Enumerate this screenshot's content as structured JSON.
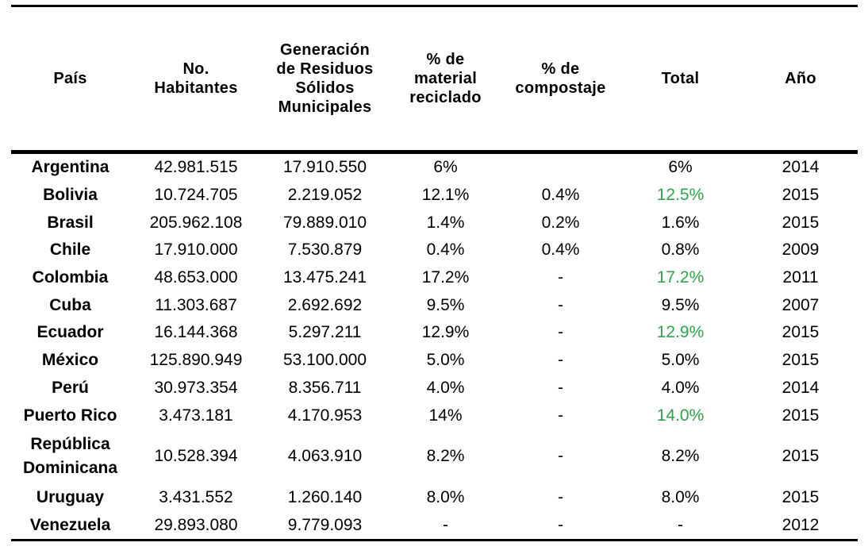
{
  "headers": {
    "pais": "País",
    "habitantes_l1": "No.",
    "habitantes_l2": "Habitantes",
    "generacion_l1": "Generación",
    "generacion_l2": "de Residuos",
    "generacion_l3": "Sólidos",
    "generacion_l4": "Municipales",
    "reciclado_l1": "% de",
    "reciclado_l2": "material",
    "reciclado_l3": "reciclado",
    "compostaje_l1": "% de",
    "compostaje_l2": "compostaje",
    "total": "Total",
    "anio": "Año"
  },
  "colors": {
    "highlight_total": "#2ea44f"
  },
  "rows": [
    {
      "pais": "Argentina",
      "habitantes": "42.981.515",
      "generacion": "17.910.550",
      "reciclado": "6%",
      "compostaje": "",
      "total": "6%",
      "anio": "2014",
      "highlight": false
    },
    {
      "pais": "Bolivia",
      "habitantes": "10.724.705",
      "generacion": "2.219.052",
      "reciclado": "12.1%",
      "compostaje": "0.4%",
      "total": "12.5%",
      "anio": "2015",
      "highlight": true
    },
    {
      "pais": "Brasil",
      "habitantes": "205.962.108",
      "generacion": "79.889.010",
      "reciclado": "1.4%",
      "compostaje": "0.2%",
      "total": "1.6%",
      "anio": "2015",
      "highlight": false
    },
    {
      "pais": "Chile",
      "habitantes": "17.910.000",
      "generacion": "7.530.879",
      "reciclado": "0.4%",
      "compostaje": "0.4%",
      "total": "0.8%",
      "anio": "2009",
      "highlight": false
    },
    {
      "pais": "Colombia",
      "habitantes": "48.653.000",
      "generacion": "13.475.241",
      "reciclado": "17.2%",
      "compostaje": "-",
      "total": "17.2%",
      "anio": "2011",
      "highlight": true
    },
    {
      "pais": "Cuba",
      "habitantes": "11.303.687",
      "generacion": "2.692.692",
      "reciclado": "9.5%",
      "compostaje": "-",
      "total": "9.5%",
      "anio": "2007",
      "highlight": false
    },
    {
      "pais": "Ecuador",
      "habitantes": "16.144.368",
      "generacion": "5.297.211",
      "reciclado": "12.9%",
      "compostaje": "-",
      "total": "12.9%",
      "anio": "2015",
      "highlight": true
    },
    {
      "pais": "México",
      "habitantes": "125.890.949",
      "generacion": "53.100.000",
      "reciclado": "5.0%",
      "compostaje": "-",
      "total": "5.0%",
      "anio": "2015",
      "highlight": false
    },
    {
      "pais": "Perú",
      "habitantes": "30.973.354",
      "generacion": "8.356.711",
      "reciclado": "4.0%",
      "compostaje": "-",
      "total": "4.0%",
      "anio": "2014",
      "highlight": false
    },
    {
      "pais": "Puerto Rico",
      "habitantes": "3.473.181",
      "generacion": "4.170.953",
      "reciclado": "14%",
      "compostaje": "-",
      "total": "14.0%",
      "anio": "2015",
      "highlight": true
    },
    {
      "pais": "República Dominicana",
      "habitantes": "10.528.394",
      "generacion": "4.063.910",
      "reciclado": "8.2%",
      "compostaje": "-",
      "total": "8.2%",
      "anio": "2015",
      "highlight": false
    },
    {
      "pais": "Uruguay",
      "habitantes": "3.431.552",
      "generacion": "1.260.140",
      "reciclado": "8.0%",
      "compostaje": "-",
      "total": "8.0%",
      "anio": "2015",
      "highlight": false
    },
    {
      "pais": "Venezuela",
      "habitantes": "29.893.080",
      "generacion": "9.779.093",
      "reciclado": "-",
      "compostaje": "-",
      "total": "-",
      "anio": "2012",
      "highlight": false
    }
  ]
}
